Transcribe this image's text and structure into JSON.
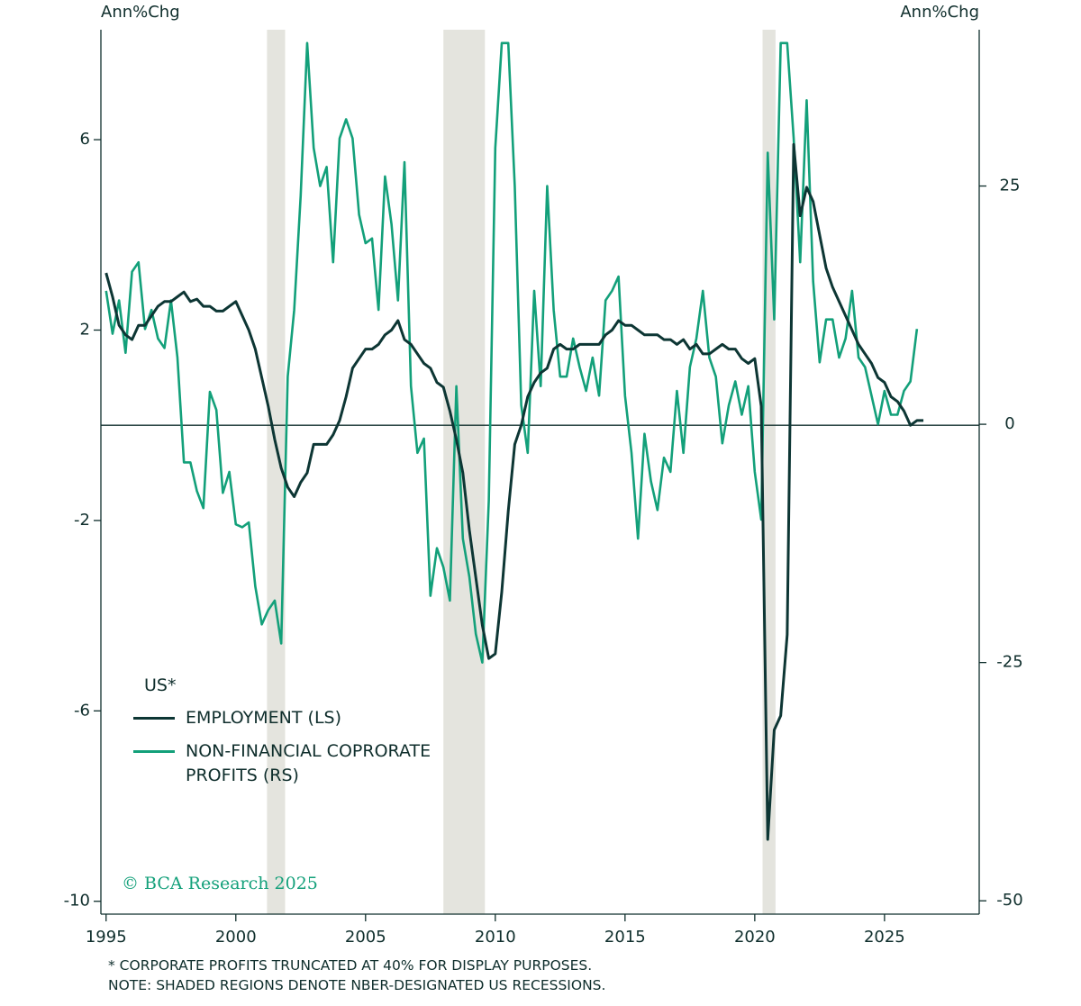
{
  "chart_data": {
    "type": "line",
    "y_label": "Ann%Chg",
    "y2_label": "Ann%Chg",
    "legend_title": "US*",
    "x": [
      1995,
      1995.25,
      1995.5,
      1995.75,
      1996,
      1996.25,
      1996.5,
      1996.75,
      1997,
      1997.25,
      1997.5,
      1997.75,
      1998,
      1998.25,
      1998.5,
      1998.75,
      1999,
      1999.25,
      1999.5,
      1999.75,
      2000,
      2000.25,
      2000.5,
      2000.75,
      2001,
      2001.25,
      2001.5,
      2001.75,
      2002,
      2002.25,
      2002.5,
      2002.75,
      2003,
      2003.25,
      2003.5,
      2003.75,
      2004,
      2004.25,
      2004.5,
      2004.75,
      2005,
      2005.25,
      2005.5,
      2005.75,
      2006,
      2006.25,
      2006.5,
      2006.75,
      2007,
      2007.25,
      2007.5,
      2007.75,
      2008,
      2008.25,
      2008.5,
      2008.75,
      2009,
      2009.25,
      2009.5,
      2009.75,
      2010,
      2010.25,
      2010.5,
      2010.75,
      2011,
      2011.25,
      2011.5,
      2011.75,
      2012,
      2012.25,
      2012.5,
      2012.75,
      2013,
      2013.25,
      2013.5,
      2013.75,
      2014,
      2014.25,
      2014.5,
      2014.75,
      2015,
      2015.25,
      2015.5,
      2015.75,
      2016,
      2016.25,
      2016.5,
      2016.75,
      2017,
      2017.25,
      2017.5,
      2017.75,
      2018,
      2018.25,
      2018.5,
      2018.75,
      2019,
      2019.25,
      2019.5,
      2019.75,
      2020,
      2020.25,
      2020.5,
      2020.75,
      2021,
      2021.25,
      2021.5,
      2021.75,
      2022,
      2022.25,
      2022.5,
      2022.75,
      2023,
      2023.25,
      2023.5,
      2023.75,
      2024,
      2024.25,
      2024.5,
      2024.75,
      2025,
      2025.25,
      2025.5,
      2025.75,
      2026,
      2026.25,
      2026.5
    ],
    "series": [
      {
        "name": "EMPLOYMENT (LS)",
        "color": "#0d3634",
        "axis": "y",
        "values": [
          3.2,
          2.7,
          2.1,
          1.9,
          1.8,
          2.1,
          2.1,
          2.3,
          2.5,
          2.6,
          2.6,
          2.7,
          2.8,
          2.6,
          2.65,
          2.5,
          2.5,
          2.4,
          2.4,
          2.5,
          2.6,
          2.3,
          2.0,
          1.6,
          1.0,
          0.4,
          -0.3,
          -0.9,
          -1.3,
          -1.5,
          -1.2,
          -1.0,
          -0.4,
          -0.4,
          -0.4,
          -0.2,
          0.1,
          0.6,
          1.2,
          1.4,
          1.6,
          1.6,
          1.7,
          1.9,
          2.0,
          2.2,
          1.8,
          1.7,
          1.5,
          1.3,
          1.2,
          0.9,
          0.8,
          0.3,
          -0.3,
          -1.0,
          -2.2,
          -3.2,
          -4.2,
          -4.9,
          -4.8,
          -3.5,
          -1.8,
          -0.4,
          0.0,
          0.6,
          0.9,
          1.1,
          1.2,
          1.6,
          1.7,
          1.6,
          1.6,
          1.7,
          1.7,
          1.7,
          1.7,
          1.9,
          2.0,
          2.2,
          2.1,
          2.1,
          2.0,
          1.9,
          1.9,
          1.9,
          1.8,
          1.8,
          1.7,
          1.8,
          1.6,
          1.7,
          1.5,
          1.5,
          1.6,
          1.7,
          1.6,
          1.6,
          1.4,
          1.3,
          1.4,
          0.4,
          -8.7,
          -6.4,
          -6.1,
          -4.4,
          5.9,
          4.4,
          5.0,
          4.7,
          4.0,
          3.3,
          2.9,
          2.6,
          2.3,
          2.0,
          1.7,
          1.5,
          1.3,
          1.0,
          0.9,
          0.6,
          0.5,
          0.3,
          0.0,
          0.1,
          0.1
        ]
      },
      {
        "name": "NON-FINANCIAL COPRORATE PROFITS (RS)",
        "color": "#13a07a",
        "axis": "y2",
        "values": [
          14,
          9.5,
          13,
          7.5,
          16,
          17,
          10,
          12,
          9,
          8,
          13,
          7,
          -4,
          -4,
          -7,
          -8.8,
          3.4,
          1.5,
          -7.2,
          -5,
          -10.5,
          -10.8,
          -10.3,
          -17,
          -21,
          -19.5,
          -18.5,
          -23,
          5,
          12,
          24,
          40,
          29,
          25,
          27,
          17,
          30,
          32,
          30,
          22,
          19,
          19.5,
          12,
          26,
          21,
          13,
          27.5,
          4,
          -3,
          -1.5,
          -18,
          -13,
          -15,
          -18.5,
          4,
          -12,
          -16,
          -22,
          -25,
          -8,
          29,
          40,
          40,
          25,
          2,
          -3,
          14,
          4,
          25,
          12,
          5,
          5,
          9,
          6,
          3.5,
          7,
          3,
          13,
          14,
          15.5,
          3,
          -3,
          -12,
          -1,
          -6,
          -9,
          -3.5,
          -5,
          3.5,
          -3,
          6,
          9,
          14,
          7,
          5,
          -2,
          2,
          4.5,
          1,
          4,
          -5,
          -10,
          28.5,
          11,
          40,
          40,
          30,
          17,
          34,
          15,
          6.5,
          11,
          11,
          7,
          9,
          14,
          7,
          6,
          3,
          0,
          3.5,
          1,
          1,
          3.5,
          4.5,
          10,
          null
        ]
      }
    ],
    "xlim": [
      1994.8,
      2028.65
    ],
    "xticks": [
      1995,
      2000,
      2005,
      2010,
      2015,
      2020,
      2025
    ],
    "ylim": [
      -10.27,
      8.31
    ],
    "yticks": [
      6,
      2,
      -2,
      -6,
      -10
    ],
    "y2lim": [
      -51.4,
      41.4
    ],
    "y2ticks": [
      25,
      0,
      -25,
      -50
    ],
    "zero_line": true,
    "recessions": [
      [
        2001.2,
        2001.9
      ],
      [
        2008.0,
        2009.6
      ],
      [
        2020.3,
        2020.8
      ]
    ],
    "recession_color": "#e4e4de",
    "watermark": "© BCA Research 2025",
    "notes": [
      "* CORPORATE PROFITS TRUNCATED AT 40% FOR DISPLAY PURPOSES.",
      "NOTE: SHADED REGIONS DENOTE NBER-DESIGNATED US RECESSIONS."
    ]
  }
}
